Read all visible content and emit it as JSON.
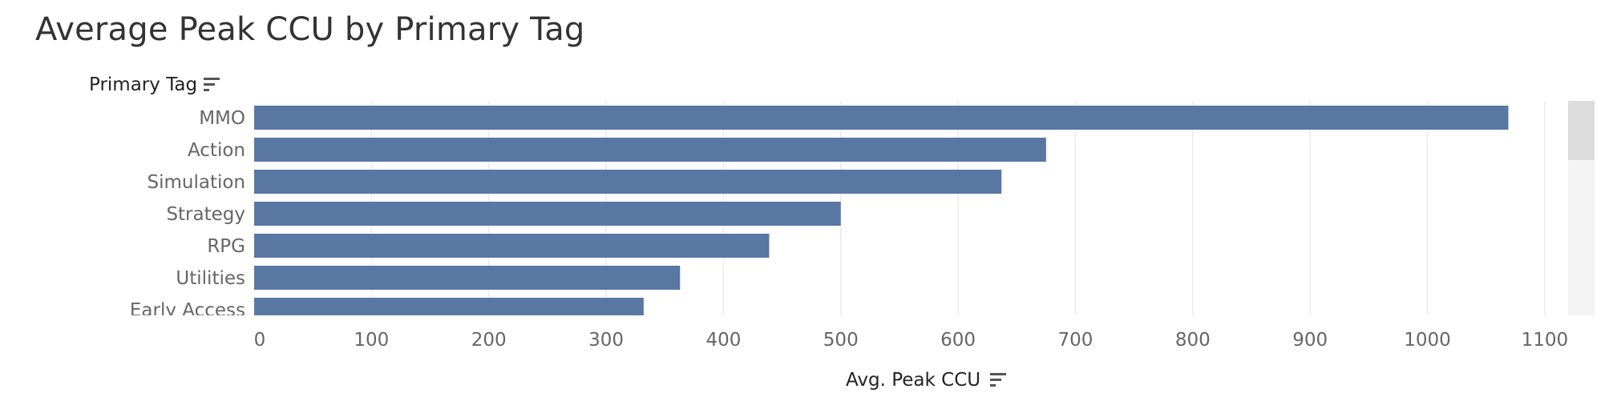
{
  "title": "Average Peak CCU by Primary Tag",
  "y_field_label": "Primary Tag",
  "x_field_label": "Avg. Peak CCU",
  "icons": {
    "sort": "sort-descending-icon"
  },
  "colors": {
    "bar": "#5977a3",
    "grid": "#ebebeb",
    "label": "#666666",
    "tick": "#666666"
  },
  "chart_data": {
    "type": "bar",
    "orientation": "horizontal",
    "categories": [
      "MMO",
      "Action",
      "Simulation",
      "Strategy",
      "RPG",
      "Utilities",
      "Early Access"
    ],
    "values": [
      1069,
      675,
      637,
      500,
      439,
      363,
      332
    ],
    "xlabel": "Avg. Peak CCU",
    "ylabel": "Primary Tag",
    "xlim": [
      0,
      1120
    ],
    "xticks": [
      0,
      100,
      200,
      300,
      400,
      500,
      600,
      700,
      800,
      900,
      1000,
      1100
    ],
    "grid": true
  }
}
